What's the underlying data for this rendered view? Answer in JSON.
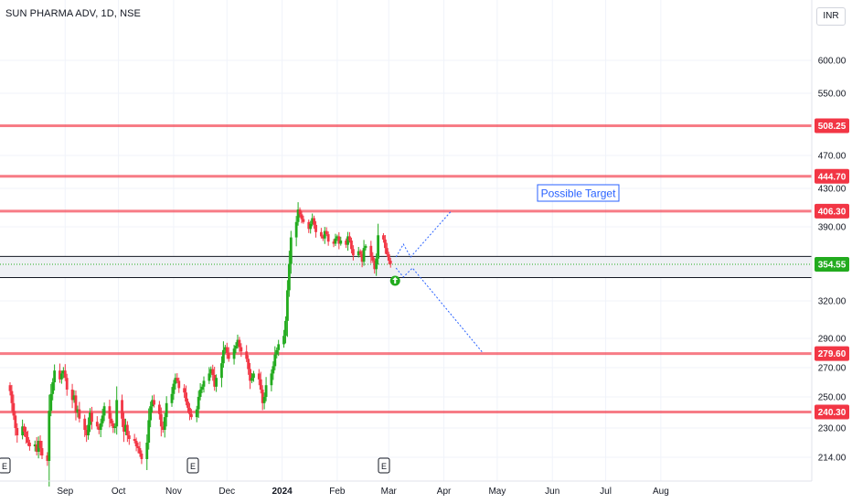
{
  "header": {
    "title": "SUN PHARMA ADV, 1D, NSE",
    "currency": "INR"
  },
  "chart_data": {
    "type": "candlestick",
    "y_ticks": [
      600,
      550,
      470,
      430,
      390,
      320,
      290,
      270,
      250,
      230,
      214
    ],
    "y_tick_labels": [
      "600.00",
      "550.00",
      "470.00",
      "430.00",
      "390.00",
      "320.00",
      "290.00",
      "270.00",
      "250.00",
      "230.00",
      "214.00"
    ],
    "x_ticks": [
      {
        "label": "Sep",
        "bold": false
      },
      {
        "label": "Oct",
        "bold": false
      },
      {
        "label": "Nov",
        "bold": false
      },
      {
        "label": "Dec",
        "bold": false
      },
      {
        "label": "2024",
        "bold": true
      },
      {
        "label": "Feb",
        "bold": false
      },
      {
        "label": "Mar",
        "bold": false
      },
      {
        "label": "Apr",
        "bold": false
      },
      {
        "label": "May",
        "bold": false
      },
      {
        "label": "Jun",
        "bold": false
      },
      {
        "label": "Jul",
        "bold": false
      },
      {
        "label": "Aug",
        "bold": false
      }
    ],
    "horizontal_levels": [
      {
        "value": 508.25,
        "label": "508.25",
        "color": "#f23645"
      },
      {
        "value": 444.7,
        "label": "444.70",
        "color": "#f23645"
      },
      {
        "value": 406.3,
        "label": "406.30",
        "color": "#f23645"
      },
      {
        "value": 279.6,
        "label": "279.60",
        "color": "#f23645"
      },
      {
        "value": 240.3,
        "label": "240.30",
        "color": "#f23645"
      }
    ],
    "zone": {
      "top": 362,
      "bottom": 342
    },
    "last_price": {
      "value": 354.55,
      "label": "354.55",
      "color": "#22ab1e"
    },
    "annotation": {
      "text": "Possible Target",
      "color": "#2962ff"
    },
    "event_marker": {
      "text": "E"
    },
    "colors": {
      "up": "#22ab1e",
      "down": "#f23645"
    },
    "candles_close": [
      254,
      246,
      238,
      230,
      226,
      231,
      228,
      225,
      222,
      220,
      221,
      217,
      223,
      219,
      215,
      212,
      241,
      252,
      260,
      268,
      262,
      266,
      268,
      263,
      255,
      248,
      251,
      240,
      242,
      236,
      229,
      226,
      232,
      240,
      234,
      231,
      229,
      233,
      238,
      244,
      236,
      233,
      230,
      231,
      248,
      236,
      228,
      232,
      226,
      224,
      223,
      220,
      219,
      216,
      213,
      222,
      235,
      244,
      248,
      245,
      239,
      231,
      229,
      237,
      246,
      252,
      259,
      263,
      261,
      256,
      253,
      247,
      243,
      239,
      237,
      242,
      250,
      255,
      257,
      261,
      266,
      269,
      265,
      257,
      263,
      273,
      282,
      284,
      280,
      276,
      283,
      285,
      289,
      284,
      281,
      276,
      269,
      261,
      263,
      266,
      262,
      255,
      246,
      250,
      258,
      266,
      271,
      279,
      282,
      286,
      292,
      304,
      330,
      355,
      380,
      395,
      408,
      403,
      398,
      395,
      388,
      393,
      399,
      392,
      385,
      381,
      379,
      386,
      383,
      376,
      374,
      379,
      381,
      374,
      377,
      373,
      381,
      377,
      369,
      363,
      367,
      364,
      357,
      370,
      372,
      362,
      358,
      350,
      360,
      382,
      378,
      370,
      364,
      358,
      355
    ]
  }
}
